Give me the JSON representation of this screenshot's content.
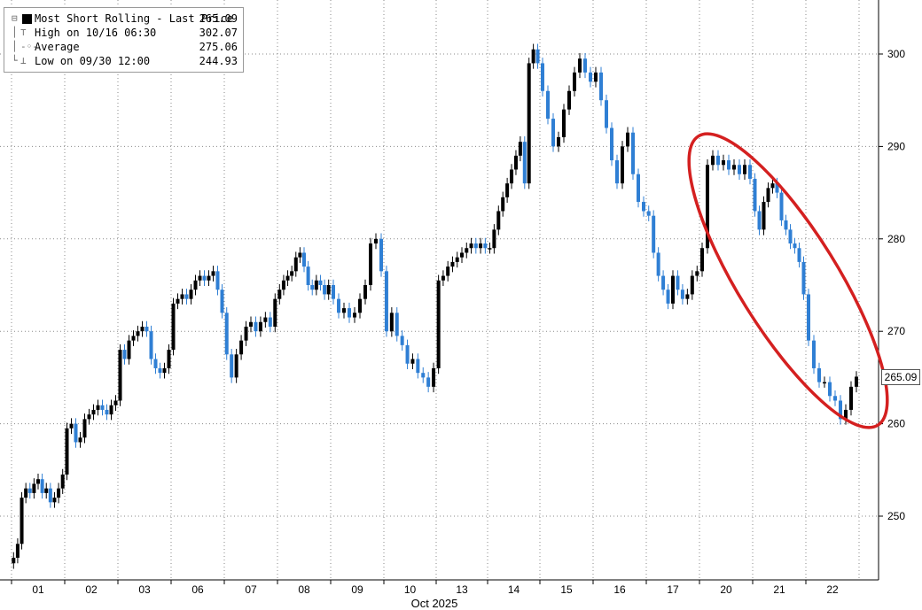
{
  "legend": {
    "title": "Most Short Rolling - Last Price",
    "last_price": "265.09",
    "high_label": "High on 10/16 06:30",
    "high_value": "302.07",
    "avg_label": "Average",
    "avg_value": "275.06",
    "low_label": "Low on 09/30 12:00",
    "low_value": "244.93"
  },
  "last_price_tag": "265.09",
  "chart_data": {
    "type": "candlestick",
    "title": "Most Short Rolling - Last Price",
    "xlabel": "Oct 2025",
    "ylim": [
      243,
      307
    ],
    "yticks": [
      250,
      260,
      270,
      280,
      290,
      300
    ],
    "ytick_labels": [
      "250",
      "260",
      "270",
      "280",
      "290",
      "300"
    ],
    "x_tick_labels": [
      "01",
      "02",
      "03",
      "06",
      "07",
      "08",
      "09",
      "10",
      "13",
      "14",
      "15",
      "16",
      "17",
      "20",
      "21",
      "22"
    ],
    "grid": true,
    "colors": {
      "up": "#000000",
      "down": "#2f7fd4",
      "annotation": "#d42020"
    },
    "annotation": "red ellipse around the decline on 20-22 Oct",
    "sessions": [
      {
        "day": "01",
        "values": [
          245.5,
          247.0,
          252.0,
          253.0,
          252.5,
          253.5,
          254.0,
          252.5,
          253.0,
          251.5,
          252.0,
          253.0,
          254.5
        ]
      },
      {
        "day": "02",
        "values": [
          259.5,
          260.0,
          258.0,
          258.5,
          260.5,
          261.0,
          261.5,
          262.0,
          261.5,
          261.0,
          262.0,
          262.5
        ]
      },
      {
        "day": "03",
        "values": [
          268.0,
          267.0,
          269.0,
          269.5,
          270.0,
          270.5,
          270.0,
          267.0,
          266.0,
          265.5,
          266.0,
          268.0
        ]
      },
      {
        "day": "06",
        "values": [
          273.0,
          273.5,
          274.0,
          273.5,
          274.5,
          275.5,
          276.0,
          275.5,
          276.0,
          276.5,
          274.5,
          272.0
        ]
      },
      {
        "day": "07",
        "values": [
          267.5,
          265.0,
          267.5,
          269.0,
          270.5,
          271.0,
          270.0,
          271.0,
          271.5,
          270.5,
          273.5
        ]
      },
      {
        "day": "08",
        "values": [
          274.5,
          275.5,
          276.0,
          276.5,
          278.0,
          278.5,
          277.0,
          275.0,
          274.5,
          275.5,
          275.0,
          274.0,
          275.0
        ]
      },
      {
        "day": "09",
        "values": [
          273.5,
          272.0,
          272.5,
          271.5,
          272.0,
          273.5,
          275.0,
          279.5,
          280.0,
          276.5
        ]
      },
      {
        "day": "10",
        "values": [
          270.0,
          272.0,
          269.5,
          268.5,
          266.5,
          267.0,
          265.5,
          265.0,
          264.0,
          266.0
        ]
      },
      {
        "day": "13",
        "values": [
          275.5,
          276.0,
          277.0,
          277.5,
          278.0,
          278.5,
          279.0,
          279.5,
          279.0,
          279.5,
          279.0
        ]
      },
      {
        "day": "14",
        "values": [
          279.0,
          281.0,
          283.0,
          284.5,
          286.0,
          287.5,
          289.0,
          290.5,
          286.0,
          299.0,
          300.5,
          299.0
        ]
      },
      {
        "day": "15",
        "values": [
          296.0,
          293.0,
          290.0,
          291.0,
          294.0,
          296.0,
          298.0,
          299.5,
          298.0,
          297.0
        ]
      },
      {
        "day": "16",
        "values": [
          298.0,
          295.0,
          292.0,
          288.5,
          286.0,
          290.0,
          291.5,
          287.0,
          284.0,
          283.0
        ]
      },
      {
        "day": "17",
        "values": [
          282.5,
          278.5,
          276.0,
          274.5,
          273.0,
          276.0,
          274.5,
          273.5,
          274.0,
          276.0,
          276.5
        ]
      },
      {
        "day": "20",
        "values": [
          279.0,
          288.0,
          289.0,
          288.0,
          288.5,
          287.5,
          288.0,
          287.0,
          288.0,
          286.5
        ]
      },
      {
        "day": "21",
        "values": [
          283.0,
          281.0,
          284.0,
          285.5,
          286.0,
          285.0,
          282.0,
          281.0,
          279.5,
          279.0,
          277.5,
          274.0
        ]
      },
      {
        "day": "22",
        "values": [
          269.0,
          266.0,
          264.5,
          264.5,
          263.0,
          262.5,
          260.5,
          261.5,
          264.0,
          265.09
        ]
      }
    ]
  }
}
